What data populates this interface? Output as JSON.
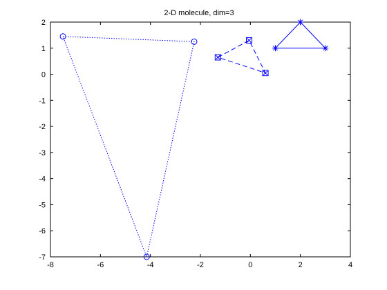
{
  "chart_data": {
    "type": "line",
    "title": "2-D molecule, dim=3",
    "xlabel": "",
    "ylabel": "",
    "xlim": [
      -8,
      4
    ],
    "ylim": [
      -7,
      2
    ],
    "xticks": [
      -8,
      -6,
      -4,
      -2,
      0,
      2,
      4
    ],
    "yticks": [
      2,
      1,
      0,
      -1,
      -2,
      -3,
      -4,
      -5,
      -6,
      -7
    ],
    "grid": false,
    "line_color": "#0000ff",
    "series": [
      {
        "marker": "circle",
        "line_style": "dotted",
        "points": [
          [
            -7.5,
            1.45
          ],
          [
            -2.25,
            1.25
          ],
          [
            -4.15,
            -7.0
          ],
          [
            -7.5,
            1.45
          ]
        ]
      },
      {
        "marker": "square-x",
        "line_style": "dashed",
        "points": [
          [
            -1.3,
            0.65
          ],
          [
            -0.05,
            1.3
          ],
          [
            0.6,
            0.05
          ],
          [
            -1.3,
            0.65
          ]
        ]
      },
      {
        "marker": "star",
        "line_style": "solid",
        "points": [
          [
            1.0,
            1.0
          ],
          [
            2.0,
            2.0
          ],
          [
            3.0,
            1.0
          ],
          [
            1.0,
            1.0
          ]
        ]
      }
    ]
  }
}
